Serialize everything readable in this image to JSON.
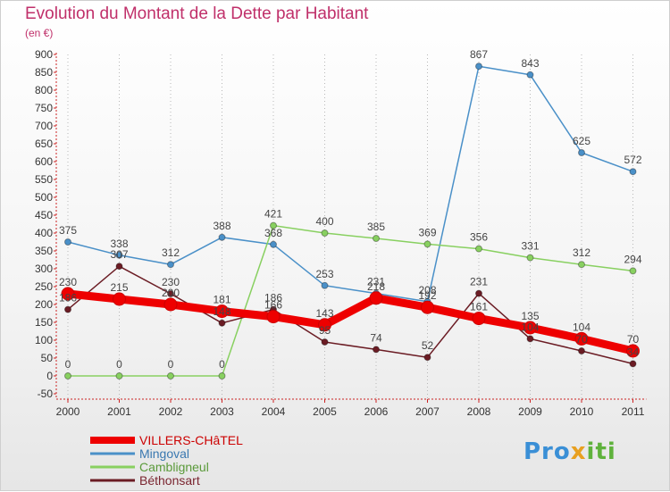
{
  "header": {
    "title": "Evolution du Montant de la Dette par Habitant",
    "unit": "(en €)"
  },
  "logo": {
    "part1": "Pro",
    "part2": "x",
    "part3": "iti"
  },
  "chart_data": {
    "type": "line",
    "title": "Evolution du Montant de la Dette par Habitant",
    "ylabel": "(en €)",
    "xlabel": "",
    "x": [
      "2000",
      "2001",
      "2002",
      "2003",
      "2004",
      "2005",
      "2006",
      "2007",
      "2008",
      "2009",
      "2010",
      "2011"
    ],
    "ylim": [
      -50,
      900
    ],
    "yticks": [
      -50,
      0,
      50,
      100,
      150,
      200,
      250,
      300,
      350,
      400,
      450,
      500,
      550,
      600,
      650,
      700,
      750,
      800,
      850,
      900
    ],
    "grid": "vertical-dotted",
    "legend_position": "bottom-left",
    "series": [
      {
        "name": "VILLERS-CHâTEL",
        "color": "#ee0000",
        "style": "thick",
        "values": [
          230,
          215,
          200,
          181,
          166,
          143,
          218,
          192,
          161,
          135,
          104,
          70
        ],
        "labels": [
          "230",
          "215",
          "200",
          "181",
          "166",
          "143",
          "218",
          "192",
          "161",
          "135",
          "104",
          "70"
        ]
      },
      {
        "name": "Mingoval",
        "color": "#4a90c8",
        "style": "thin",
        "values": [
          375,
          338,
          312,
          388,
          368,
          253,
          231,
          208,
          867,
          843,
          625,
          572
        ],
        "labels": [
          "375",
          "338",
          "312",
          "388",
          "368",
          "253",
          "231",
          "208",
          "867",
          "843",
          "625",
          "572"
        ]
      },
      {
        "name": "Cambligneul",
        "color": "#88d060",
        "style": "thin",
        "values": [
          0,
          0,
          0,
          0,
          421,
          400,
          385,
          369,
          356,
          331,
          312,
          294
        ],
        "labels": [
          "0",
          "0",
          "0",
          "0",
          "421",
          "400",
          "385",
          "369",
          "356",
          "331",
          "312",
          "294"
        ]
      },
      {
        "name": "Béthonsart",
        "color": "#6b1c24",
        "style": "thin",
        "values": [
          186,
          307,
          230,
          148,
          186,
          95,
          74,
          52,
          231,
          104,
          70,
          34
        ],
        "labels": [
          "186",
          "307",
          "230",
          "148",
          "186",
          "95",
          "74",
          "52",
          "231",
          "104",
          "70",
          "34"
        ]
      }
    ]
  }
}
